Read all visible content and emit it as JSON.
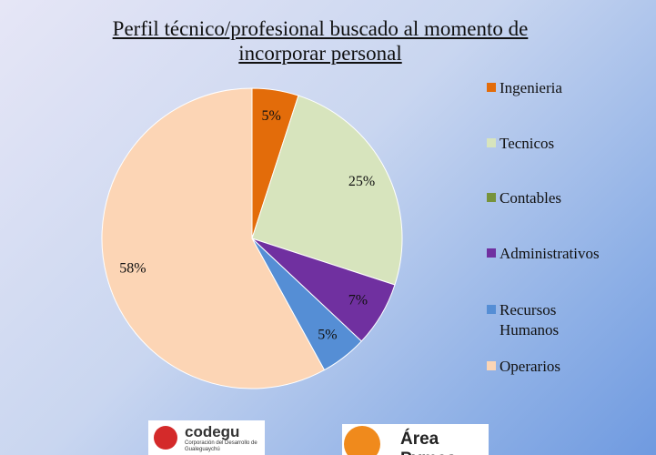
{
  "chart_data": {
    "type": "pie",
    "title": "Perfil técnico/profesional buscado al momento de incorporar personal",
    "categories": [
      "Ingenieria",
      "Tecnicos",
      "Contables",
      "Administrativos",
      "Recursos Humanos",
      "Operarios"
    ],
    "values": [
      5,
      25,
      0,
      7,
      5,
      58
    ],
    "value_labels": [
      "5%",
      "25%",
      null,
      "7%",
      "5%",
      "58%"
    ],
    "colors": [
      "#e36c0a",
      "#d7e4bd",
      "#77933c",
      "#7030a0",
      "#558ed5",
      "#fcd5b5"
    ],
    "legend": "right"
  },
  "logos": {
    "codegu": "codegu",
    "codegu_subtitle": "Corporación del Desarrollo de Gualeguaychú",
    "area_pymes": "Área Pymes"
  }
}
